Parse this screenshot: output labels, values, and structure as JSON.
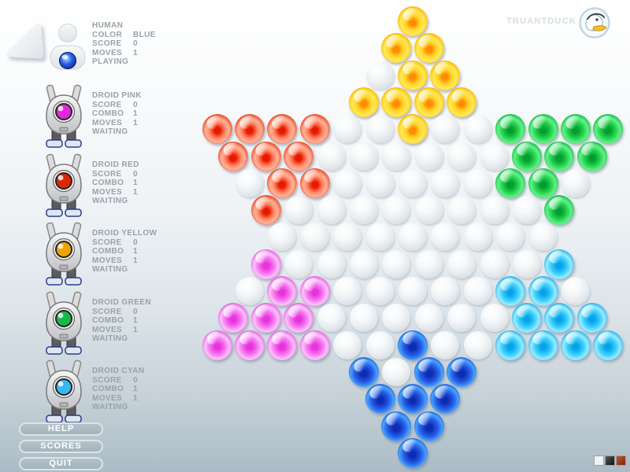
{
  "header": {
    "brand": "TRUANTDUCK",
    "logo_icon": "duck-icon"
  },
  "back_button": {
    "icon": "back-arrow-icon"
  },
  "players": [
    {
      "name": "HUMAN",
      "kind": "human",
      "color": "#2a62ea",
      "stats": [
        [
          "COLOR",
          "BLUE"
        ],
        [
          "SCORE",
          "0"
        ],
        [
          "MOVES",
          "1"
        ]
      ],
      "status": "PLAYING"
    },
    {
      "name": "DROID PINK",
      "kind": "droid",
      "color": "#e028d8",
      "stats": [
        [
          "SCORE",
          "0"
        ],
        [
          "COMBO",
          "1"
        ],
        [
          "MOVES",
          "1"
        ]
      ],
      "status": "WAITING"
    },
    {
      "name": "DROID RED",
      "kind": "droid",
      "color": "#d82808",
      "stats": [
        [
          "SCORE",
          "0"
        ],
        [
          "COMBO",
          "1"
        ],
        [
          "MOVES",
          "1"
        ]
      ],
      "status": "WAITING"
    },
    {
      "name": "DROID YELLOW",
      "kind": "droid",
      "color": "#f0a400",
      "stats": [
        [
          "SCORE",
          "0"
        ],
        [
          "COMBO",
          "1"
        ],
        [
          "MOVES",
          "1"
        ]
      ],
      "status": "WAITING"
    },
    {
      "name": "DROID GREEN",
      "kind": "droid",
      "color": "#18b848",
      "stats": [
        [
          "SCORE",
          "0"
        ],
        [
          "COMBO",
          "1"
        ],
        [
          "MOVES",
          "1"
        ]
      ],
      "status": "WAITING"
    },
    {
      "name": "DROID CYAN",
      "kind": "droid",
      "color": "#38b8f0",
      "stats": [
        [
          "SCORE",
          "0"
        ],
        [
          "COMBO",
          "1"
        ],
        [
          "MOVES",
          "1"
        ]
      ],
      "status": "WAITING"
    }
  ],
  "menu_buttons": [
    "HELP",
    "SCORES",
    "QUIT"
  ],
  "board": {
    "rows": [
      "Y",
      "YY",
      ".YY",
      "YYYY",
      "RRRR..Y..GGGG",
      "RRR......GGG",
      ".RR.....GG.",
      "R........G",
      ".........",
      "P........C",
      ".PP.....CC.",
      "PPP......CCC",
      "PPPP..B..CCCC",
      "B.BB",
      "BBB",
      "BB",
      "B"
    ],
    "legend": {
      "Y": "yellow",
      "R": "red",
      "G": "green",
      "P": "pink",
      "C": "cyan",
      "B": "blue",
      ".": "empty"
    }
  },
  "theme_swatches": [
    {
      "name": "white",
      "hex": "#f2f2f2"
    },
    {
      "name": "black",
      "hex": "#2a2a2a"
    },
    {
      "name": "rust",
      "hex": "#b04820"
    }
  ]
}
